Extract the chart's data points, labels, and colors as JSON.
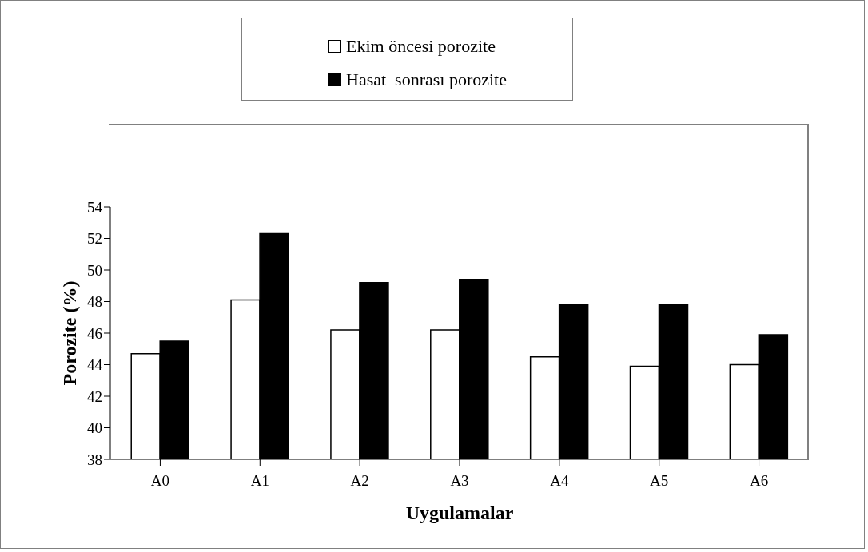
{
  "chart_data": {
    "type": "bar",
    "xlabel": "Uygulamalar",
    "ylabel": "Porozite (%)",
    "categories": [
      "A0",
      "A1",
      "A2",
      "A3",
      "A4",
      "A5",
      "A6"
    ],
    "series": [
      {
        "name": "Ekim öncesi porozite",
        "color": "#ffffff",
        "values": [
          44.7,
          48.1,
          46.2,
          46.2,
          44.5,
          43.9,
          44.0
        ]
      },
      {
        "name": "Hasat  sonrası porozite",
        "color": "#000000",
        "values": [
          45.5,
          52.3,
          49.2,
          49.4,
          47.8,
          47.8,
          45.9
        ]
      }
    ],
    "ylim": [
      38,
      54
    ],
    "yticks": [
      38,
      40,
      42,
      44,
      46,
      48,
      50,
      52,
      54
    ],
    "grid": false,
    "legend": "top"
  }
}
